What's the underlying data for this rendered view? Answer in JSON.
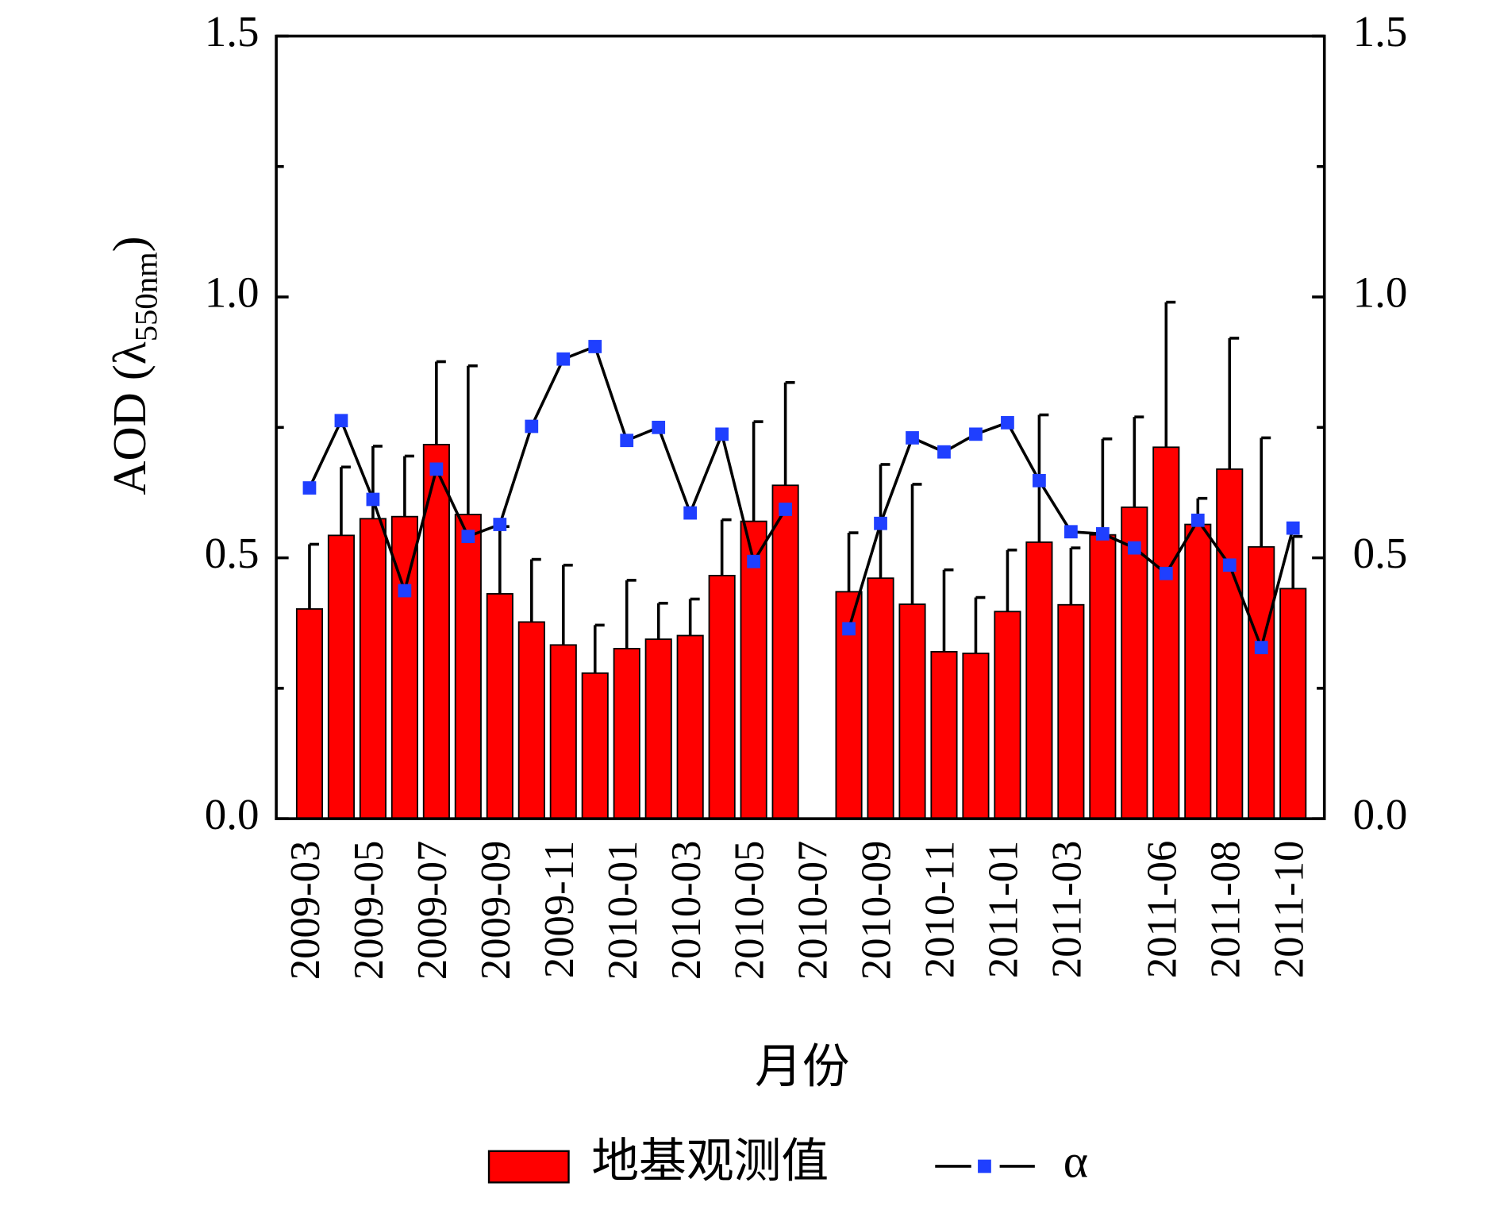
{
  "chart_data": {
    "type": "bar",
    "xlabel": "月份",
    "ylabel": {
      "main": "AOD (λ",
      "sub": "550nm",
      "end": ")"
    },
    "categories": [
      "2009-03",
      null,
      "2009-05",
      null,
      "2009-07",
      null,
      "2009-09",
      null,
      "2009-11",
      null,
      "2010-01",
      null,
      "2010-03",
      null,
      "2010-05",
      null,
      "2010-07",
      null,
      "2010-09",
      null,
      "2010-11",
      null,
      "2011-01",
      null,
      "2011-03",
      null,
      null,
      "2011-06",
      null,
      "2011-08",
      null,
      "2011-10"
    ],
    "series": [
      {
        "name": "地基观测值",
        "color": "#ff0000",
        "values": [
          0.402,
          0.543,
          0.575,
          0.579,
          0.717,
          0.583,
          0.431,
          0.377,
          0.333,
          0.279,
          0.326,
          0.344,
          0.351,
          0.466,
          0.57,
          0.639,
          null,
          0.435,
          0.461,
          0.411,
          0.32,
          0.317,
          0.397,
          0.53,
          0.41,
          0.544,
          0.597,
          0.712,
          0.564,
          0.67,
          0.521,
          0.441
        ],
        "errors": [
          0.124,
          0.131,
          0.139,
          0.116,
          0.159,
          0.285,
          0.129,
          0.12,
          0.153,
          0.092,
          0.131,
          0.069,
          0.07,
          0.107,
          0.191,
          0.197,
          null,
          0.113,
          0.218,
          0.23,
          0.157,
          0.107,
          0.118,
          0.244,
          0.109,
          0.184,
          0.173,
          0.278,
          0.05,
          0.251,
          0.209,
          0.1
        ]
      },
      {
        "name": "α",
        "type": "line",
        "axis": "y2",
        "color": "#1f3fff",
        "line_color": "#000000",
        "values": [
          0.634,
          0.763,
          0.612,
          0.437,
          0.67,
          0.541,
          0.564,
          0.752,
          0.881,
          0.905,
          0.725,
          0.75,
          0.586,
          0.737,
          0.493,
          0.593,
          null,
          0.364,
          0.566,
          0.73,
          0.703,
          0.737,
          0.759,
          0.648,
          0.55,
          0.546,
          0.519,
          0.47,
          0.572,
          0.486,
          0.328,
          0.557
        ]
      }
    ],
    "ylim": [
      0,
      1.5
    ],
    "yticks": [
      {
        "value": 0,
        "label": "0.0"
      },
      {
        "value": 0.5,
        "label": "0.5"
      },
      {
        "value": 1,
        "label": "1.0"
      },
      {
        "value": 1.5,
        "label": "1.5"
      }
    ],
    "yminor": [
      0.25,
      0.75,
      1.25
    ],
    "y2lim": [
      0,
      1.5
    ],
    "y2ticks": [
      {
        "value": 0,
        "label": "0.0"
      },
      {
        "value": 0.5,
        "label": "0.5"
      },
      {
        "value": 1,
        "label": "1.0"
      },
      {
        "value": 1.5,
        "label": "1.5"
      }
    ],
    "legend": "bottom"
  }
}
